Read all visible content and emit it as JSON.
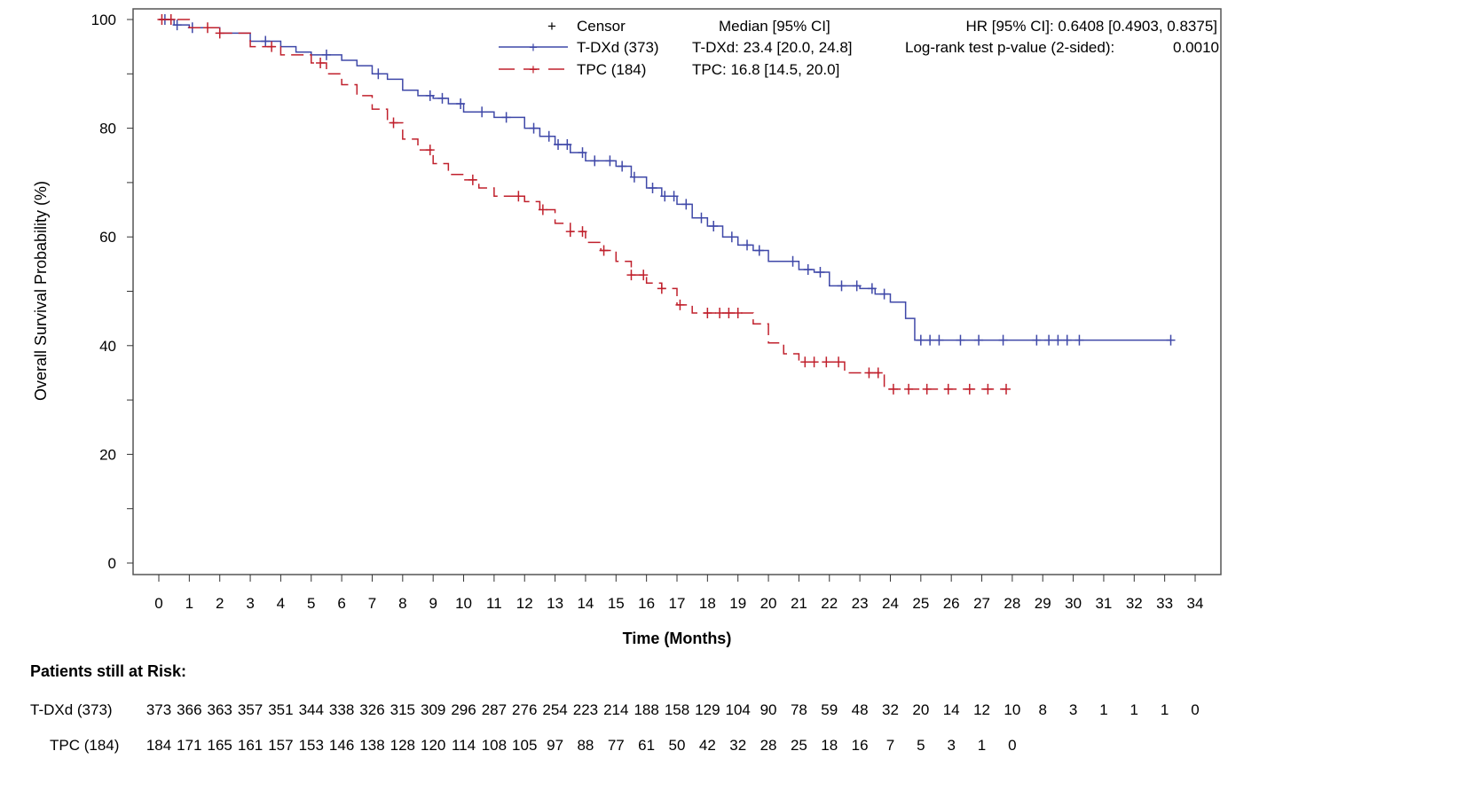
{
  "chart_data": {
    "type": "line",
    "subtype": "kaplan-meier",
    "xlabel": "Time (Months)",
    "ylabel": "Overall Survival Probability (%)",
    "xlim": [
      0,
      34
    ],
    "ylim": [
      0,
      100
    ],
    "xticks": [
      0,
      1,
      2,
      3,
      4,
      5,
      6,
      7,
      8,
      9,
      10,
      11,
      12,
      13,
      14,
      15,
      16,
      17,
      18,
      19,
      20,
      21,
      22,
      23,
      24,
      25,
      26,
      27,
      28,
      29,
      30,
      31,
      32,
      33,
      34
    ],
    "yticks": [
      0,
      20,
      40,
      60,
      80,
      100
    ],
    "grid": false,
    "legend": {
      "placement": "top",
      "censor_label": "Censor",
      "median_header": "Median [95% CI]",
      "hr_text": "HR [95% CI]: 0.6408 [0.4903, 0.8375]",
      "logrank_label": "Log-rank test p-value (2-sided):",
      "logrank_value": "0.0010"
    },
    "series": [
      {
        "name": "T-DXd (373)",
        "color": "#3f48a8",
        "dash": "solid",
        "median_text": "T-DXd: 23.4 [20.0, 24.8]",
        "steps": [
          [
            0,
            100
          ],
          [
            0.5,
            99
          ],
          [
            1,
            98.5
          ],
          [
            2,
            97.5
          ],
          [
            3,
            96
          ],
          [
            4,
            95
          ],
          [
            4.5,
            94
          ],
          [
            5,
            93.5
          ],
          [
            6,
            92.5
          ],
          [
            6.5,
            91.5
          ],
          [
            7,
            90
          ],
          [
            7.5,
            89
          ],
          [
            8,
            87
          ],
          [
            8.5,
            86
          ],
          [
            9,
            85.5
          ],
          [
            9.5,
            84.5
          ],
          [
            10,
            83
          ],
          [
            11,
            82
          ],
          [
            12,
            80
          ],
          [
            12.5,
            78.5
          ],
          [
            13,
            77
          ],
          [
            13.5,
            75.5
          ],
          [
            14,
            74
          ],
          [
            15,
            73
          ],
          [
            15.5,
            71
          ],
          [
            16,
            69
          ],
          [
            16.5,
            67.5
          ],
          [
            17,
            66
          ],
          [
            17.5,
            63.5
          ],
          [
            18,
            62
          ],
          [
            18.5,
            60
          ],
          [
            19,
            58.5
          ],
          [
            19.5,
            57.5
          ],
          [
            20,
            55.5
          ],
          [
            21,
            54
          ],
          [
            21.5,
            53.5
          ],
          [
            22,
            51
          ],
          [
            23,
            50.5
          ],
          [
            23.5,
            49.5
          ],
          [
            24,
            48
          ],
          [
            24.5,
            45
          ],
          [
            24.8,
            41
          ]
        ],
        "end": 33.2,
        "censors": [
          0.2,
          0.6,
          1.1,
          3.5,
          5.5,
          7.2,
          8.9,
          9.3,
          9.9,
          10.6,
          11.4,
          12.3,
          12.8,
          13.1,
          13.4,
          13.9,
          14.3,
          14.8,
          15.2,
          15.6,
          16.2,
          16.6,
          16.9,
          17.3,
          17.8,
          18.2,
          18.8,
          19.3,
          19.7,
          20.8,
          21.3,
          21.7,
          22.4,
          22.9,
          23.4,
          23.8,
          25.0,
          25.3,
          25.6,
          26.3,
          26.9,
          27.7,
          28.8,
          29.2,
          29.5,
          29.8,
          30.2,
          33.2
        ]
      },
      {
        "name": "TPC (184)",
        "color": "#c0202c",
        "dash": "dashed",
        "median_text": "TPC: 16.8 [14.5, 20.0]",
        "steps": [
          [
            0,
            100
          ],
          [
            1,
            98.5
          ],
          [
            2,
            97.5
          ],
          [
            3,
            95
          ],
          [
            4,
            93.5
          ],
          [
            5,
            92
          ],
          [
            5.5,
            90
          ],
          [
            6,
            88
          ],
          [
            6.5,
            86
          ],
          [
            7,
            83.5
          ],
          [
            7.5,
            81
          ],
          [
            8,
            78
          ],
          [
            8.5,
            76
          ],
          [
            9,
            73.5
          ],
          [
            9.5,
            71.5
          ],
          [
            10,
            70.5
          ],
          [
            10.5,
            69
          ],
          [
            11,
            67.5
          ],
          [
            12,
            66.5
          ],
          [
            12.5,
            65
          ],
          [
            13,
            62.5
          ],
          [
            13.5,
            61
          ],
          [
            14,
            59
          ],
          [
            14.5,
            57.5
          ],
          [
            15,
            55.5
          ],
          [
            15.5,
            53
          ],
          [
            16,
            51.5
          ],
          [
            16.5,
            50.5
          ],
          [
            17,
            47.5
          ],
          [
            17.5,
            46
          ],
          [
            19.5,
            44
          ],
          [
            20,
            40.5
          ],
          [
            20.5,
            38.5
          ],
          [
            21,
            37
          ],
          [
            22.5,
            35
          ],
          [
            23.8,
            32
          ]
        ],
        "end": 27.8,
        "censors": [
          0.1,
          0.4,
          1.6,
          2.0,
          3.7,
          5.3,
          7.7,
          8.9,
          10.3,
          11.8,
          12.6,
          13.5,
          13.9,
          14.6,
          15.5,
          15.9,
          16.5,
          17.1,
          18.0,
          18.4,
          18.7,
          19.0,
          21.2,
          21.5,
          21.9,
          22.3,
          23.3,
          23.6,
          24.1,
          24.6,
          25.2,
          25.9,
          26.6,
          27.2,
          27.8
        ]
      }
    ],
    "risk_table": {
      "title": "Patients still at Risk:",
      "rows": [
        {
          "label": "T-DXd (373)",
          "values": [
            373,
            366,
            363,
            357,
            351,
            344,
            338,
            326,
            315,
            309,
            296,
            287,
            276,
            254,
            223,
            214,
            188,
            158,
            129,
            104,
            90,
            78,
            59,
            48,
            32,
            20,
            14,
            12,
            10,
            8,
            3,
            1,
            1,
            1,
            0
          ]
        },
        {
          "label": "TPC (184)",
          "values": [
            184,
            171,
            165,
            161,
            157,
            153,
            146,
            138,
            128,
            120,
            114,
            108,
            105,
            97,
            88,
            77,
            61,
            50,
            42,
            32,
            28,
            25,
            18,
            16,
            7,
            5,
            3,
            1,
            0
          ]
        }
      ]
    }
  }
}
